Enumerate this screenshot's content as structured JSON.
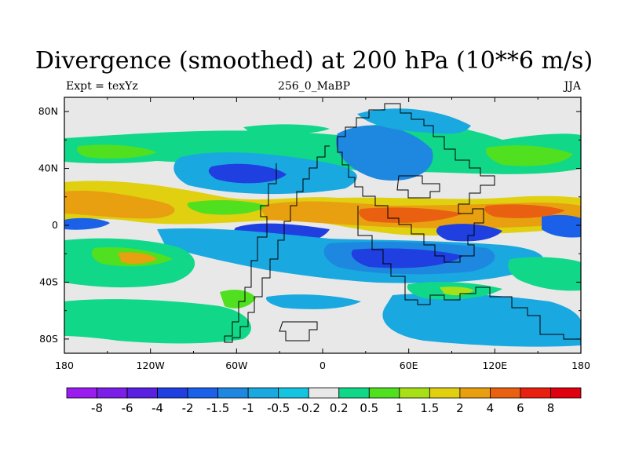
{
  "title": "Divergence (smoothed) at 200 hPa (10**6 m/s)",
  "subtitle_left": "Expt = texYz",
  "subtitle_center": "256_0_MaBP",
  "subtitle_right": "JJA",
  "x_ticks": [
    "180",
    "120W",
    "60W",
    "0",
    "60E",
    "120E",
    "180"
  ],
  "y_ticks": [
    "80N",
    "40N",
    "0",
    "40S",
    "80S"
  ],
  "colorbar": {
    "labels": [
      "-8",
      "-6",
      "-4",
      "-2",
      "-1.5",
      "-1",
      "-0.5",
      "-0.2",
      "0.2",
      "0.5",
      "1",
      "1.5",
      "2",
      "4",
      "6",
      "8"
    ],
    "colors": [
      "#9a1cf0",
      "#7a1ee8",
      "#5a1fe0",
      "#1f3fe0",
      "#1a60e8",
      "#1e88e0",
      "#1aa8e0",
      "#14c4e0",
      "#e8e8e8",
      "#10d888",
      "#50e020",
      "#a8e018",
      "#e0d010",
      "#e8a010",
      "#e86010",
      "#e82010",
      "#e00010"
    ]
  },
  "colors": {
    "strong_neg": "#1f3fe0",
    "mid_neg": "#1e88e0",
    "weak_neg": "#14c4e0",
    "neutral": "#e8e8e8",
    "weak_pos": "#10d888",
    "mid_pos": "#50e020",
    "pos": "#e0d010",
    "strong_pos": "#e86010"
  }
}
